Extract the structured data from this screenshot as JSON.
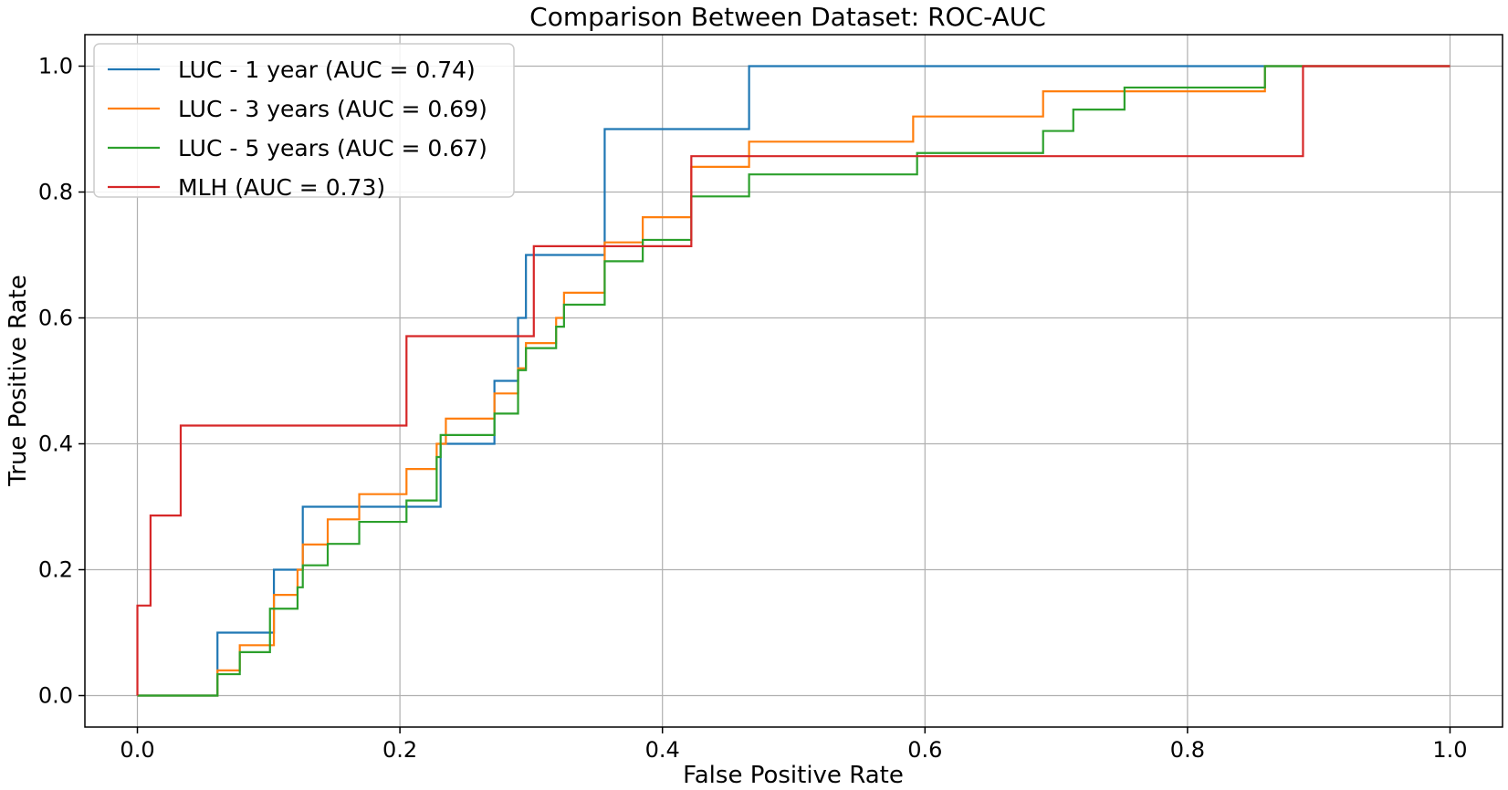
{
  "chart_data": {
    "type": "line",
    "title": "Comparison Between Dataset: ROC-AUC",
    "xlabel": "False Positive Rate",
    "ylabel": "True Positive Rate",
    "xlim": [
      -0.04,
      1.04
    ],
    "ylim": [
      -0.05,
      1.05
    ],
    "xticks": [
      0.0,
      0.2,
      0.4,
      0.6,
      0.8,
      1.0
    ],
    "yticks": [
      0.0,
      0.2,
      0.4,
      0.6,
      0.8,
      1.0
    ],
    "xtick_labels": [
      "0.0",
      "0.2",
      "0.4",
      "0.6",
      "0.8",
      "1.0"
    ],
    "ytick_labels": [
      "0.0",
      "0.2",
      "0.4",
      "0.6",
      "0.8",
      "1.0"
    ],
    "grid": true,
    "legend_position": "top-left",
    "series": [
      {
        "name": "LUC - 1 year (AUC = 0.74)",
        "color": "#1f77b4",
        "step": true,
        "points": [
          [
            0.0,
            0.0
          ],
          [
            0.061,
            0.0
          ],
          [
            0.061,
            0.1
          ],
          [
            0.104,
            0.1
          ],
          [
            0.104,
            0.2
          ],
          [
            0.126,
            0.2
          ],
          [
            0.126,
            0.3
          ],
          [
            0.231,
            0.3
          ],
          [
            0.231,
            0.4
          ],
          [
            0.272,
            0.4
          ],
          [
            0.272,
            0.5
          ],
          [
            0.29,
            0.5
          ],
          [
            0.29,
            0.6
          ],
          [
            0.296,
            0.6
          ],
          [
            0.296,
            0.7
          ],
          [
            0.356,
            0.7
          ],
          [
            0.356,
            0.9
          ],
          [
            0.466,
            0.9
          ],
          [
            0.466,
            1.0
          ],
          [
            1.0,
            1.0
          ]
        ]
      },
      {
        "name": "LUC - 3 years (AUC = 0.69)",
        "color": "#ff7f0e",
        "step": true,
        "points": [
          [
            0.0,
            0.0
          ],
          [
            0.061,
            0.0
          ],
          [
            0.061,
            0.04
          ],
          [
            0.078,
            0.04
          ],
          [
            0.078,
            0.08
          ],
          [
            0.104,
            0.08
          ],
          [
            0.104,
            0.16
          ],
          [
            0.122,
            0.16
          ],
          [
            0.122,
            0.2
          ],
          [
            0.126,
            0.2
          ],
          [
            0.126,
            0.24
          ],
          [
            0.145,
            0.24
          ],
          [
            0.145,
            0.28
          ],
          [
            0.169,
            0.28
          ],
          [
            0.169,
            0.32
          ],
          [
            0.205,
            0.32
          ],
          [
            0.205,
            0.36
          ],
          [
            0.228,
            0.36
          ],
          [
            0.228,
            0.4
          ],
          [
            0.235,
            0.4
          ],
          [
            0.235,
            0.44
          ],
          [
            0.272,
            0.44
          ],
          [
            0.272,
            0.48
          ],
          [
            0.29,
            0.48
          ],
          [
            0.29,
            0.52
          ],
          [
            0.296,
            0.52
          ],
          [
            0.296,
            0.56
          ],
          [
            0.319,
            0.56
          ],
          [
            0.319,
            0.6
          ],
          [
            0.325,
            0.6
          ],
          [
            0.325,
            0.64
          ],
          [
            0.356,
            0.64
          ],
          [
            0.356,
            0.72
          ],
          [
            0.385,
            0.72
          ],
          [
            0.385,
            0.76
          ],
          [
            0.422,
            0.76
          ],
          [
            0.422,
            0.84
          ],
          [
            0.466,
            0.84
          ],
          [
            0.466,
            0.88
          ],
          [
            0.591,
            0.88
          ],
          [
            0.591,
            0.92
          ],
          [
            0.69,
            0.92
          ],
          [
            0.69,
            0.96
          ],
          [
            0.859,
            0.96
          ],
          [
            0.859,
            1.0
          ],
          [
            1.0,
            1.0
          ]
        ]
      },
      {
        "name": "LUC - 5 years (AUC = 0.67)",
        "color": "#2ca02c",
        "step": true,
        "points": [
          [
            0.0,
            0.0
          ],
          [
            0.061,
            0.0
          ],
          [
            0.061,
            0.034
          ],
          [
            0.078,
            0.034
          ],
          [
            0.078,
            0.069
          ],
          [
            0.101,
            0.069
          ],
          [
            0.101,
            0.138
          ],
          [
            0.122,
            0.138
          ],
          [
            0.122,
            0.172
          ],
          [
            0.126,
            0.172
          ],
          [
            0.126,
            0.207
          ],
          [
            0.145,
            0.207
          ],
          [
            0.145,
            0.241
          ],
          [
            0.169,
            0.241
          ],
          [
            0.169,
            0.276
          ],
          [
            0.205,
            0.276
          ],
          [
            0.205,
            0.31
          ],
          [
            0.228,
            0.31
          ],
          [
            0.228,
            0.379
          ],
          [
            0.231,
            0.379
          ],
          [
            0.231,
            0.414
          ],
          [
            0.272,
            0.414
          ],
          [
            0.272,
            0.448
          ],
          [
            0.29,
            0.448
          ],
          [
            0.29,
            0.517
          ],
          [
            0.296,
            0.517
          ],
          [
            0.296,
            0.552
          ],
          [
            0.319,
            0.552
          ],
          [
            0.319,
            0.586
          ],
          [
            0.325,
            0.586
          ],
          [
            0.325,
            0.621
          ],
          [
            0.356,
            0.621
          ],
          [
            0.356,
            0.69
          ],
          [
            0.385,
            0.69
          ],
          [
            0.385,
            0.724
          ],
          [
            0.422,
            0.724
          ],
          [
            0.422,
            0.793
          ],
          [
            0.466,
            0.793
          ],
          [
            0.466,
            0.828
          ],
          [
            0.594,
            0.828
          ],
          [
            0.594,
            0.862
          ],
          [
            0.69,
            0.862
          ],
          [
            0.69,
            0.897
          ],
          [
            0.713,
            0.897
          ],
          [
            0.713,
            0.931
          ],
          [
            0.752,
            0.931
          ],
          [
            0.752,
            0.966
          ],
          [
            0.859,
            0.966
          ],
          [
            0.859,
            1.0
          ],
          [
            1.0,
            1.0
          ]
        ]
      },
      {
        "name": "MLH (AUC = 0.73)",
        "color": "#d62728",
        "step": true,
        "points": [
          [
            0.0,
            0.0
          ],
          [
            0.0,
            0.143
          ],
          [
            0.01,
            0.143
          ],
          [
            0.01,
            0.286
          ],
          [
            0.033,
            0.286
          ],
          [
            0.033,
            0.429
          ],
          [
            0.205,
            0.429
          ],
          [
            0.205,
            0.571
          ],
          [
            0.302,
            0.571
          ],
          [
            0.302,
            0.714
          ],
          [
            0.422,
            0.714
          ],
          [
            0.422,
            0.857
          ],
          [
            0.888,
            0.857
          ],
          [
            0.888,
            1.0
          ],
          [
            1.0,
            1.0
          ]
        ]
      }
    ]
  }
}
